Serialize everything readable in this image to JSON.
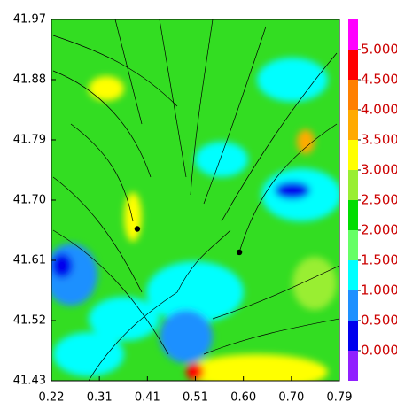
{
  "chart_data": {
    "type": "contour",
    "xlim": [
      0.22,
      0.79
    ],
    "ylim": [
      41.43,
      41.97
    ],
    "xticks": [
      0.22,
      {
        "value": 0.315,
        "label": "0.31"
      },
      0.41,
      {
        "value": 0.505,
        "label": "0.51"
      },
      {
        "value": 0.6,
        "label": "0.60"
      },
      {
        "value": 0.695,
        "label": "0.70"
      },
      0.79
    ],
    "yticks": [
      41.43,
      41.52,
      41.61,
      {
        "value": 41.7,
        "label": "41.70"
      },
      41.79,
      41.88,
      41.97
    ],
    "points": {
      "x": [
        0.39,
        0.592
      ],
      "y": [
        41.657,
        41.622
      ],
      "color": "#000000"
    },
    "colorbar": {
      "clim": [
        -0.5,
        5.5
      ],
      "colors": [
        "#9020ff",
        "#0000ee",
        "#1e90ff",
        "#00ffff",
        "#66ff66",
        "#00dd00",
        "#99ee33",
        "#ffff00",
        "#ffaa00",
        "#ff8000",
        "#ff0000",
        "#ff00ff"
      ],
      "ticks": [
        {
          "value": 0,
          "label": "0.000"
        },
        {
          "value": 0.5,
          "label": "0.500"
        },
        {
          "value": 1,
          "label": "1.000"
        },
        {
          "value": 1.5,
          "label": "1.500"
        },
        {
          "value": 2,
          "label": "2.000"
        },
        {
          "value": 2.5,
          "label": "2.500"
        },
        {
          "value": 3,
          "label": "3.000"
        },
        {
          "value": 3.5,
          "label": "3.500"
        },
        {
          "value": 4,
          "label": "4.000"
        },
        {
          "value": 4.5,
          "label": "4.500"
        },
        {
          "value": 5,
          "label": "5.000"
        }
      ]
    }
  }
}
